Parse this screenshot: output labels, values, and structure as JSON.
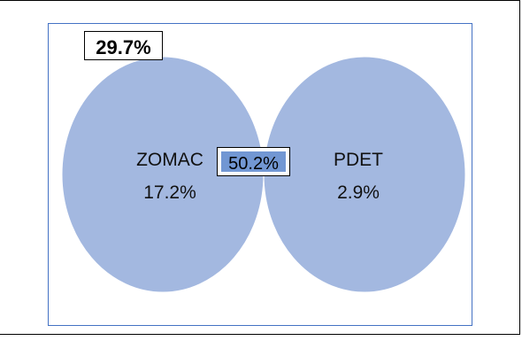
{
  "venn": {
    "outside": {
      "value": "29.7%"
    },
    "left_set": {
      "name": "ZOMAC",
      "value": "17.2%"
    },
    "right_set": {
      "name": "PDET",
      "value": "2.9%"
    },
    "intersection": {
      "value": "50.2%"
    }
  },
  "colors": {
    "circle_fill": "#a3b8e0",
    "intersection_fill": "#7297d3",
    "circle_stroke": "#ffffff",
    "plot_border": "#4472c4",
    "outer_border": "#000000"
  }
}
